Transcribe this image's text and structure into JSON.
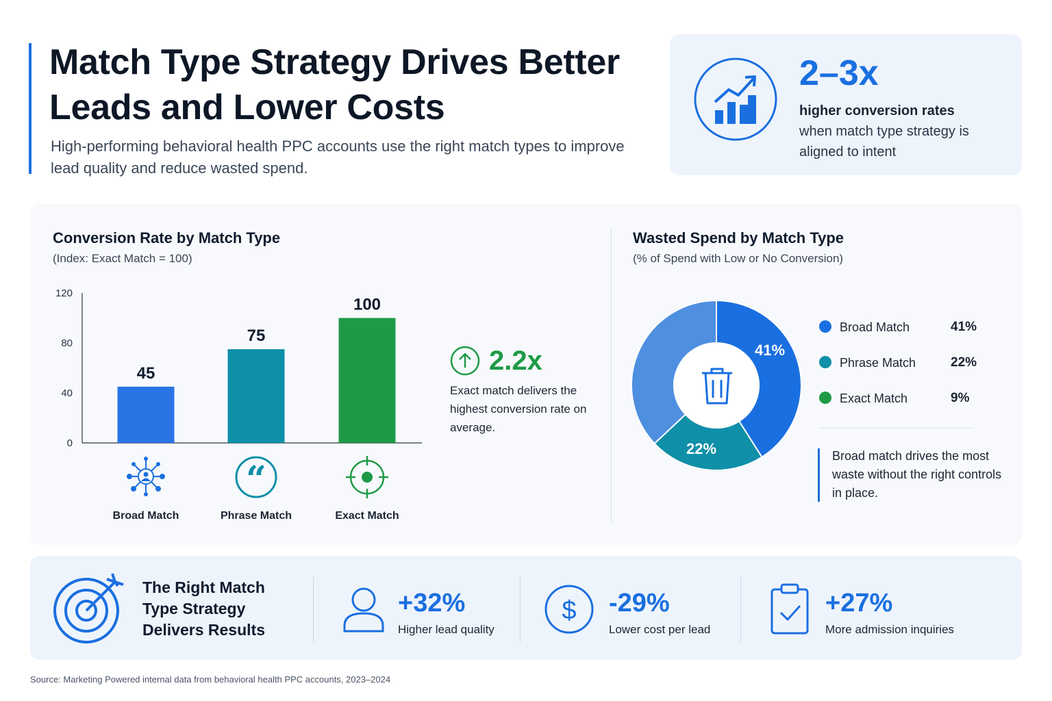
{
  "header": {
    "title": "Match Type Strategy Drives Better Leads and Lower Costs",
    "subtitle": "High-performing behavioral health PPC accounts use the right match types to improve lead quality and reduce wasted spend."
  },
  "top_stat": {
    "icon": "chart-growth-icon",
    "value": "2–3x",
    "line1": "higher conversion rates",
    "line2": "when match type strategy is aligned to intent"
  },
  "conversion_chart": {
    "callout": {
      "icon": "arrow-up-circle-icon",
      "value": "2.2x",
      "text": "Exact match delivers the highest conversion rate on average."
    }
  },
  "wasted_chart": {
    "center_icon": "trash-icon",
    "note": "Broad match drives the most waste without the right controls in place."
  },
  "bottom_band": {
    "icon": "target-arrow-icon",
    "title": "The Right Match Type Strategy Delivers Results",
    "stats": [
      {
        "icon": "user-icon",
        "value": "+32%",
        "label": "Higher lead quality"
      },
      {
        "icon": "dollar-circle-icon",
        "value": "-29%",
        "label": "Lower cost per lead"
      },
      {
        "icon": "clipboard-check-icon",
        "value": "+27%",
        "label": "More admission inquiries"
      }
    ]
  },
  "source": "Source: Marketing Powered internal data from behavioral health PPC accounts, 2023–2024",
  "colors": {
    "blue": "#1a6fe0",
    "teal": "#0f8fa8",
    "green": "#1e9a46",
    "light_blue": "#4f8fe0"
  },
  "chart_data": [
    {
      "type": "bar",
      "title": "Conversion Rate by Match Type",
      "subtitle": "(Index: Exact Match = 100)",
      "categories": [
        "Broad Match",
        "Phrase Match",
        "Exact Match"
      ],
      "category_icons": [
        "network-icon",
        "quote-icon",
        "crosshair-icon"
      ],
      "values": [
        45,
        75,
        100
      ],
      "value_labels": [
        "45",
        "75",
        "100"
      ],
      "bar_colors": [
        "#2a74e6",
        "#0f8fa8",
        "#1e9a46"
      ],
      "yticks": [
        0,
        40,
        80,
        120
      ],
      "ylim": [
        0,
        120
      ],
      "grid": false
    },
    {
      "type": "pie",
      "title": "Wasted Spend by Match Type",
      "subtitle": "(% of Spend with Low or No Conversion)",
      "slices": [
        {
          "label": "Broad Match",
          "value": 41,
          "display": "41%",
          "color": "#1a6fe0"
        },
        {
          "label": "Phrase Match",
          "value": 22,
          "display": "22%",
          "color": "#0f8fa8"
        },
        {
          "label": "Exact Match",
          "value": 9,
          "display": "9%",
          "color": "#1e9a46"
        }
      ],
      "remainder_color": "#4f8fe0",
      "donut": true,
      "legend_position": "right"
    }
  ]
}
